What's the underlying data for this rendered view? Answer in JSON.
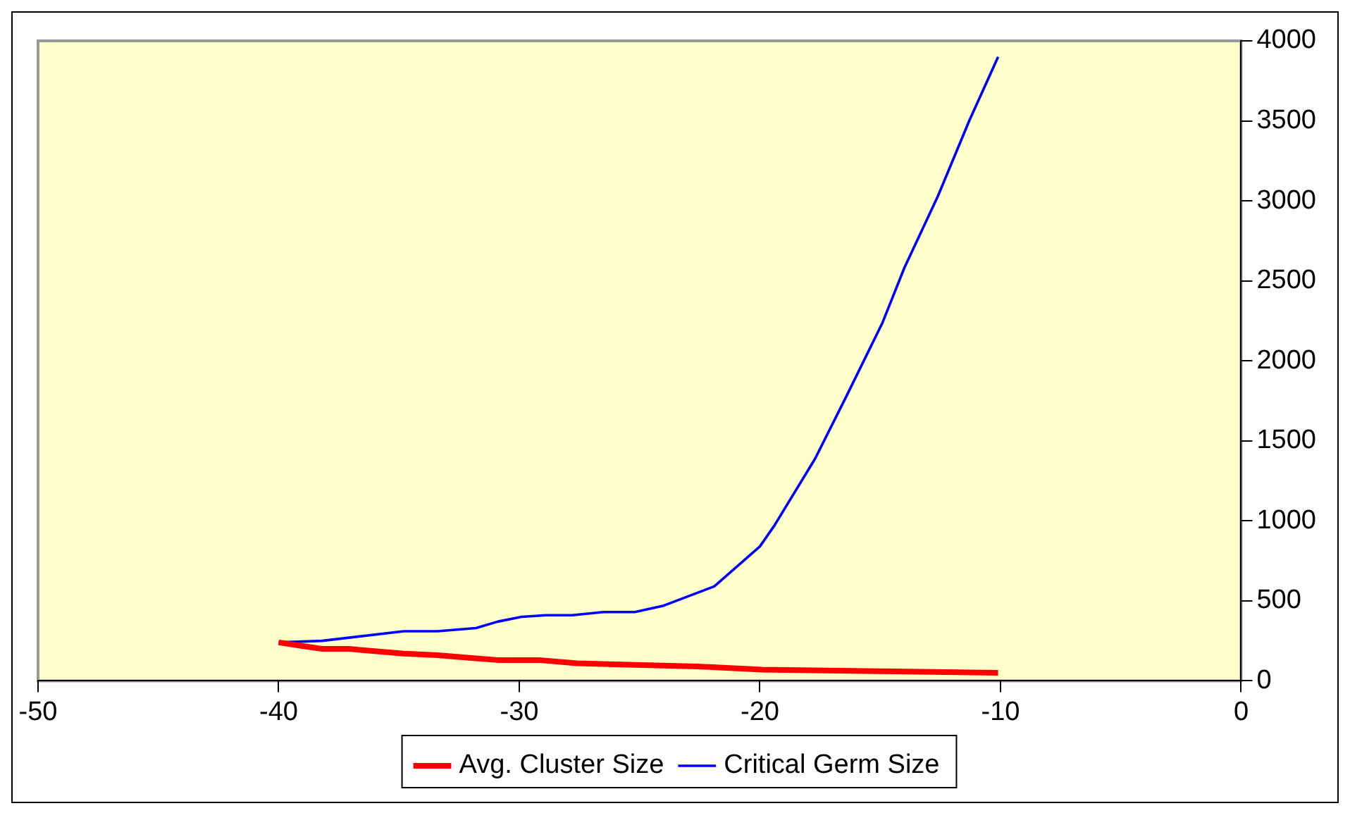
{
  "chart_data": {
    "type": "line",
    "xlim": [
      -50,
      0
    ],
    "xticks": [
      -50,
      -40,
      -30,
      -20,
      -10,
      0
    ],
    "ylim": [
      0,
      4000
    ],
    "yticks": [
      0,
      500,
      1000,
      1500,
      2000,
      2500,
      3000,
      3500,
      4000
    ],
    "grid": false,
    "legend": "bottom",
    "marker": "none",
    "line_style": "solid",
    "series": [
      {
        "name": "Avg. Cluster Size",
        "color": "#ff0000",
        "x": [
          -40,
          -39.1,
          -38.2,
          -37.1,
          -34.8,
          -33.4,
          -31.8,
          -30.9,
          -29.2,
          -27.6,
          -25.2,
          -22.6,
          -19.9,
          -15.1,
          -10.1
        ],
        "values": [
          240,
          220,
          200,
          200,
          170,
          160,
          140,
          130,
          130,
          110,
          100,
          90,
          70,
          60,
          50
        ]
      },
      {
        "name": "Critical Germ Size",
        "color": "#0000ff",
        "x": [
          -40,
          -38.2,
          -34.8,
          -33.4,
          -31.8,
          -30.9,
          -29.9,
          -28.9,
          -27.8,
          -26.5,
          -25.2,
          -24,
          -21.9,
          -20,
          -19.4,
          -17.7,
          -16.4,
          -14.9,
          -14,
          -12.6,
          -11.3,
          -10.1
        ],
        "values": [
          240,
          250,
          310,
          310,
          330,
          370,
          400,
          410,
          410,
          430,
          430,
          470,
          590,
          840,
          970,
          1390,
          1780,
          2240,
          2580,
          3030,
          3500,
          3900
        ]
      }
    ]
  }
}
